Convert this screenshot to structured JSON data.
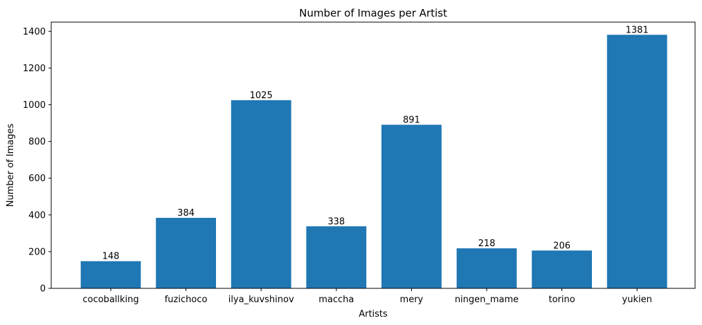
{
  "chart_data": {
    "type": "bar",
    "title": "Number of Images per Artist",
    "xlabel": "Artists",
    "ylabel": "Number of Images",
    "categories": [
      "cocoballking",
      "fuzichoco",
      "ilya_kuvshinov",
      "maccha",
      "mery",
      "ningen_mame",
      "torino",
      "yukien"
    ],
    "values": [
      148,
      384,
      1025,
      338,
      891,
      218,
      206,
      1381
    ],
    "ylim": [
      0,
      1450
    ],
    "yticks": [
      0,
      200,
      400,
      600,
      800,
      1000,
      1200,
      1400
    ],
    "bar_color": "#1f77b4",
    "grid": false,
    "legend": "none"
  }
}
